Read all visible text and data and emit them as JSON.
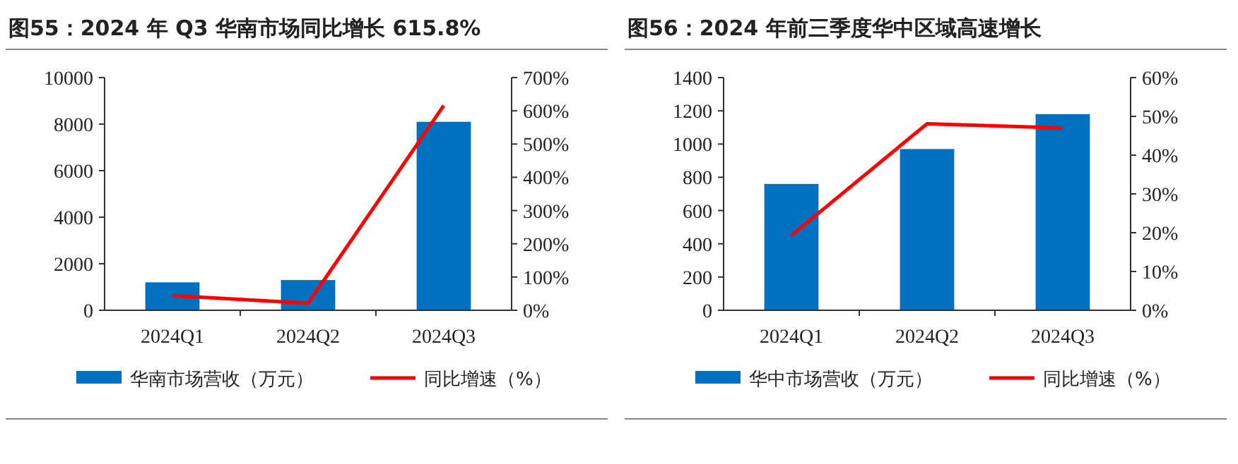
{
  "chart_data": [
    {
      "type": "bar",
      "title": "图55：2024 年 Q3 华南市场同比增长 615.8%",
      "categories": [
        "2024Q1",
        "2024Q2",
        "2024Q3"
      ],
      "series": [
        {
          "name": "华南市场营收（万元）",
          "color": "#0070c0",
          "values": [
            1200,
            1300,
            8100
          ]
        },
        {
          "name": "同比增速（%）",
          "type": "line",
          "axis": "y2",
          "color": "#ff0000",
          "values": [
            44,
            21,
            615.8
          ]
        }
      ],
      "ylim": [
        0,
        10000
      ],
      "yticks": [
        0,
        2000,
        4000,
        6000,
        8000,
        10000
      ],
      "y2lim": [
        0,
        700
      ],
      "y2ticks": [
        {
          "value": 0,
          "label": "0%"
        },
        {
          "value": 100,
          "label": "100%"
        },
        {
          "value": 200,
          "label": "200%"
        },
        {
          "value": 300,
          "label": "300%"
        },
        {
          "value": 400,
          "label": "400%"
        },
        {
          "value": 500,
          "label": "500%"
        },
        {
          "value": 600,
          "label": "600%"
        },
        {
          "value": 700,
          "label": "700%"
        }
      ],
      "legend": "bottom",
      "grid": false
    },
    {
      "type": "bar",
      "title": "图56：2024 年前三季度华中区域高速增长",
      "categories": [
        "2024Q1",
        "2024Q2",
        "2024Q3"
      ],
      "series": [
        {
          "name": "华中市场营收（万元）",
          "color": "#0070c0",
          "values": [
            760,
            970,
            1180
          ]
        },
        {
          "name": "同比增速（%）",
          "type": "line",
          "axis": "y2",
          "color": "#ff0000",
          "values": [
            19.3,
            48.1,
            47.0
          ]
        }
      ],
      "ylim": [
        0,
        1400
      ],
      "yticks": [
        0,
        200,
        400,
        600,
        800,
        1000,
        1200,
        1400
      ],
      "y2lim": [
        0,
        60
      ],
      "y2ticks": [
        {
          "value": 0,
          "label": "0%"
        },
        {
          "value": 10,
          "label": "10%"
        },
        {
          "value": 20,
          "label": "20%"
        },
        {
          "value": 30,
          "label": "30%"
        },
        {
          "value": 40,
          "label": "40%"
        },
        {
          "value": 50,
          "label": "50%"
        },
        {
          "value": 60,
          "label": "60%"
        }
      ],
      "legend": "bottom",
      "grid": false
    }
  ]
}
